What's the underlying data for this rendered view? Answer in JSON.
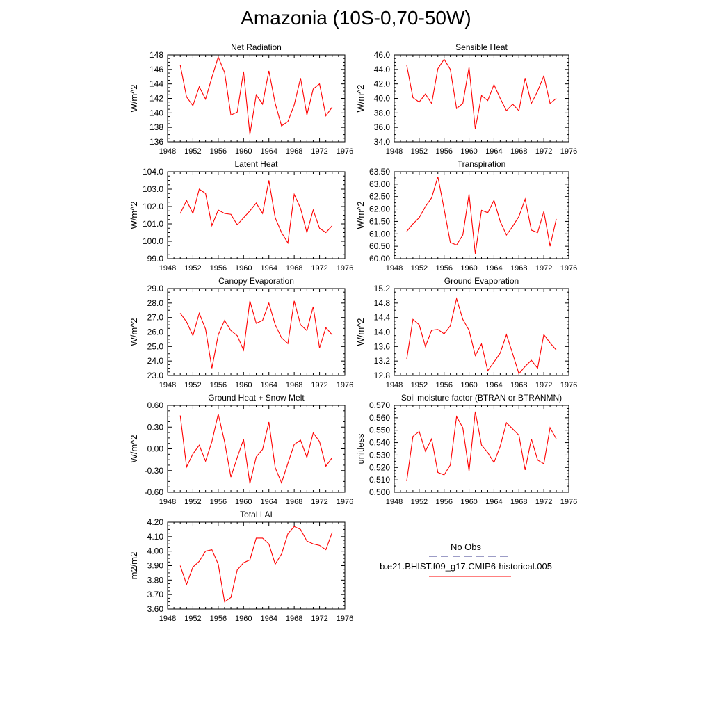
{
  "page_title": "Amazonia (10S-0,70-50W)",
  "legend": {
    "obs_label": "No Obs",
    "model_label": "b.e21.BHIST.f09_g17.CMIP6-historical.005",
    "obs_color": "#3a3a8c",
    "model_color": "#ff0000"
  },
  "chart_data": [
    {
      "type": "line",
      "title": "Net Radiation",
      "ylabel": "W/m^2",
      "xlim": [
        1948,
        1976
      ],
      "xticks": [
        1948,
        1952,
        1956,
        1960,
        1964,
        1968,
        1972,
        1976
      ],
      "ylim": [
        136,
        148
      ],
      "yticks": [
        136,
        138,
        140,
        142,
        144,
        146,
        148
      ],
      "ytick_labels": [
        "136",
        "138",
        "140",
        "142",
        "144",
        "146",
        "148"
      ],
      "x": [
        1950,
        1951,
        1952,
        1953,
        1954,
        1955,
        1956,
        1957,
        1958,
        1959,
        1960,
        1961,
        1962,
        1963,
        1964,
        1965,
        1966,
        1967,
        1968,
        1969,
        1970,
        1971,
        1972,
        1973,
        1974
      ],
      "values": [
        146.6,
        142.2,
        141.0,
        143.6,
        141.9,
        144.9,
        147.7,
        145.6,
        139.7,
        140.1,
        145.7,
        137.0,
        142.5,
        141.2,
        145.8,
        141.3,
        138.2,
        138.8,
        141.1,
        144.8,
        139.7,
        143.3,
        144.0,
        139.6,
        140.8
      ]
    },
    {
      "type": "line",
      "title": "Sensible Heat",
      "ylabel": "W/m^2",
      "xlim": [
        1948,
        1976
      ],
      "xticks": [
        1948,
        1952,
        1956,
        1960,
        1964,
        1968,
        1972,
        1976
      ],
      "ylim": [
        34,
        46
      ],
      "yticks": [
        34,
        36,
        38,
        40,
        42,
        44,
        46
      ],
      "ytick_labels": [
        "34.0",
        "36.0",
        "38.0",
        "40.0",
        "42.0",
        "44.0",
        "46.0"
      ],
      "x": [
        1950,
        1951,
        1952,
        1953,
        1954,
        1955,
        1956,
        1957,
        1958,
        1959,
        1960,
        1961,
        1962,
        1963,
        1964,
        1965,
        1966,
        1967,
        1968,
        1969,
        1970,
        1971,
        1972,
        1973,
        1974
      ],
      "values": [
        44.6,
        40.1,
        39.5,
        40.6,
        39.3,
        44.1,
        45.4,
        44.0,
        38.6,
        39.3,
        44.3,
        35.8,
        40.4,
        39.7,
        41.9,
        40.0,
        38.3,
        39.2,
        38.3,
        42.8,
        39.3,
        41.0,
        43.1,
        39.3,
        40.0
      ]
    },
    {
      "type": "line",
      "title": "Latent Heat",
      "ylabel": "W/m^2",
      "xlim": [
        1948,
        1976
      ],
      "xticks": [
        1948,
        1952,
        1956,
        1960,
        1964,
        1968,
        1972,
        1976
      ],
      "ylim": [
        99,
        104
      ],
      "yticks": [
        99,
        100,
        101,
        102,
        103,
        104
      ],
      "ytick_labels": [
        "99.0",
        "100.0",
        "101.0",
        "102.0",
        "103.0",
        "104.0"
      ],
      "x": [
        1950,
        1951,
        1952,
        1953,
        1954,
        1955,
        1956,
        1957,
        1958,
        1959,
        1960,
        1961,
        1962,
        1963,
        1964,
        1965,
        1966,
        1967,
        1968,
        1969,
        1970,
        1971,
        1972,
        1973,
        1974
      ],
      "values": [
        101.6,
        102.35,
        101.6,
        103.0,
        102.75,
        100.9,
        101.8,
        101.6,
        101.55,
        100.95,
        101.35,
        101.75,
        102.2,
        101.6,
        103.5,
        101.35,
        100.5,
        99.9,
        102.7,
        101.9,
        100.5,
        101.8,
        100.75,
        100.5,
        100.9
      ]
    },
    {
      "type": "line",
      "title": "Transpiration",
      "ylabel": "W/m^2",
      "xlim": [
        1948,
        1976
      ],
      "xticks": [
        1948,
        1952,
        1956,
        1960,
        1964,
        1968,
        1972,
        1976
      ],
      "ylim": [
        60,
        63.5
      ],
      "yticks": [
        60.0,
        60.5,
        61.0,
        61.5,
        62.0,
        62.5,
        63.0,
        63.5
      ],
      "ytick_labels": [
        "60.00",
        "60.50",
        "61.00",
        "61.50",
        "62.00",
        "62.50",
        "63.00",
        "63.50"
      ],
      "x": [
        1950,
        1951,
        1952,
        1953,
        1954,
        1955,
        1956,
        1957,
        1958,
        1959,
        1960,
        1961,
        1962,
        1963,
        1964,
        1965,
        1966,
        1967,
        1968,
        1969,
        1970,
        1971,
        1972,
        1973,
        1974
      ],
      "values": [
        61.1,
        61.4,
        61.65,
        62.1,
        62.45,
        63.3,
        62.0,
        60.65,
        60.55,
        60.95,
        62.6,
        60.2,
        61.95,
        61.85,
        62.35,
        61.5,
        60.95,
        61.3,
        61.7,
        62.4,
        61.15,
        61.05,
        61.9,
        60.5,
        61.6
      ]
    },
    {
      "type": "line",
      "title": "Canopy Evaporation",
      "ylabel": "W/m^2",
      "xlim": [
        1948,
        1976
      ],
      "xticks": [
        1948,
        1952,
        1956,
        1960,
        1964,
        1968,
        1972,
        1976
      ],
      "ylim": [
        23,
        29
      ],
      "yticks": [
        23,
        24,
        25,
        26,
        27,
        28,
        29
      ],
      "ytick_labels": [
        "23.0",
        "24.0",
        "25.0",
        "26.0",
        "27.0",
        "28.0",
        "29.0"
      ],
      "x": [
        1950,
        1951,
        1952,
        1953,
        1954,
        1955,
        1956,
        1957,
        1958,
        1959,
        1960,
        1961,
        1962,
        1963,
        1964,
        1965,
        1966,
        1967,
        1968,
        1969,
        1970,
        1971,
        1972,
        1973,
        1974
      ],
      "values": [
        27.3,
        26.7,
        25.75,
        27.3,
        26.2,
        23.5,
        25.8,
        26.8,
        26.1,
        25.75,
        24.75,
        28.15,
        26.6,
        26.8,
        28.0,
        26.5,
        25.6,
        25.2,
        28.15,
        26.5,
        26.1,
        27.75,
        24.9,
        26.3,
        25.8
      ]
    },
    {
      "type": "line",
      "title": "Ground Evaporation",
      "ylabel": "W/m^2",
      "xlim": [
        1948,
        1976
      ],
      "xticks": [
        1948,
        1952,
        1956,
        1960,
        1964,
        1968,
        1972,
        1976
      ],
      "ylim": [
        12.8,
        15.2
      ],
      "yticks": [
        12.8,
        13.2,
        13.6,
        14.0,
        14.4,
        14.8,
        15.2
      ],
      "ytick_labels": [
        "12.8",
        "13.2",
        "13.6",
        "14.0",
        "14.4",
        "14.8",
        "15.2"
      ],
      "x": [
        1950,
        1951,
        1952,
        1953,
        1954,
        1955,
        1956,
        1957,
        1958,
        1959,
        1960,
        1961,
        1962,
        1963,
        1964,
        1965,
        1966,
        1967,
        1968,
        1969,
        1970,
        1971,
        1972,
        1973,
        1974
      ],
      "values": [
        13.25,
        14.35,
        14.2,
        13.6,
        14.05,
        14.07,
        13.95,
        14.17,
        14.92,
        14.35,
        14.05,
        13.35,
        13.67,
        12.93,
        13.17,
        13.42,
        13.93,
        13.4,
        12.85,
        13.05,
        13.22,
        13.0,
        13.93,
        13.7,
        13.5
      ]
    },
    {
      "type": "line",
      "title": "Ground Heat + Snow Melt",
      "ylabel": "W/m^2",
      "xlim": [
        1948,
        1976
      ],
      "xticks": [
        1948,
        1952,
        1956,
        1960,
        1964,
        1968,
        1972,
        1976
      ],
      "ylim": [
        -0.6,
        0.6
      ],
      "yticks": [
        -0.6,
        -0.3,
        0.0,
        0.3,
        0.6
      ],
      "ytick_labels": [
        "-0.60",
        "-0.30",
        "0.00",
        "0.30",
        "0.60"
      ],
      "x": [
        1950,
        1951,
        1952,
        1953,
        1954,
        1955,
        1956,
        1957,
        1958,
        1959,
        1960,
        1961,
        1962,
        1963,
        1964,
        1965,
        1966,
        1967,
        1968,
        1969,
        1970,
        1971,
        1972,
        1973,
        1974
      ],
      "values": [
        0.46,
        -0.25,
        -0.07,
        0.05,
        -0.17,
        0.1,
        0.48,
        0.1,
        -0.39,
        -0.12,
        0.13,
        -0.48,
        -0.11,
        -0.01,
        0.37,
        -0.26,
        -0.47,
        -0.2,
        0.06,
        0.12,
        -0.12,
        0.22,
        0.1,
        -0.24,
        -0.12
      ]
    },
    {
      "type": "line",
      "title": "Soil moisture factor (BTRAN or BTRANMN)",
      "ylabel": "unitless",
      "xlim": [
        1948,
        1976
      ],
      "xticks": [
        1948,
        1952,
        1956,
        1960,
        1964,
        1968,
        1972,
        1976
      ],
      "ylim": [
        0.5,
        0.57
      ],
      "yticks": [
        0.5,
        0.51,
        0.52,
        0.53,
        0.54,
        0.55,
        0.56,
        0.57
      ],
      "ytick_labels": [
        "0.500",
        "0.510",
        "0.520",
        "0.530",
        "0.540",
        "0.550",
        "0.560",
        "0.570"
      ],
      "x": [
        1950,
        1951,
        1952,
        1953,
        1954,
        1955,
        1956,
        1957,
        1958,
        1959,
        1960,
        1961,
        1962,
        1963,
        1964,
        1965,
        1966,
        1967,
        1968,
        1969,
        1970,
        1971,
        1972,
        1973,
        1974
      ],
      "values": [
        0.509,
        0.545,
        0.549,
        0.533,
        0.543,
        0.516,
        0.514,
        0.522,
        0.561,
        0.552,
        0.517,
        0.565,
        0.538,
        0.532,
        0.524,
        0.537,
        0.556,
        0.551,
        0.546,
        0.518,
        0.543,
        0.526,
        0.523,
        0.552,
        0.543
      ]
    },
    {
      "type": "line",
      "title": "Total LAI",
      "ylabel": "m2/m2",
      "xlim": [
        1948,
        1976
      ],
      "xticks": [
        1948,
        1952,
        1956,
        1960,
        1964,
        1968,
        1972,
        1976
      ],
      "ylim": [
        3.6,
        4.2
      ],
      "yticks": [
        3.6,
        3.7,
        3.8,
        3.9,
        4.0,
        4.1,
        4.2
      ],
      "ytick_labels": [
        "3.60",
        "3.70",
        "3.80",
        "3.90",
        "4.00",
        "4.10",
        "4.20"
      ],
      "x": [
        1950,
        1951,
        1952,
        1953,
        1954,
        1955,
        1956,
        1957,
        1958,
        1959,
        1960,
        1961,
        1962,
        1963,
        1964,
        1965,
        1966,
        1967,
        1968,
        1969,
        1970,
        1971,
        1972,
        1973,
        1974
      ],
      "values": [
        3.9,
        3.77,
        3.89,
        3.93,
        4.0,
        4.01,
        3.91,
        3.65,
        3.68,
        3.87,
        3.92,
        3.94,
        4.09,
        4.09,
        4.05,
        3.91,
        3.98,
        4.12,
        4.17,
        4.15,
        4.07,
        4.05,
        4.04,
        4.01,
        4.13
      ]
    }
  ]
}
